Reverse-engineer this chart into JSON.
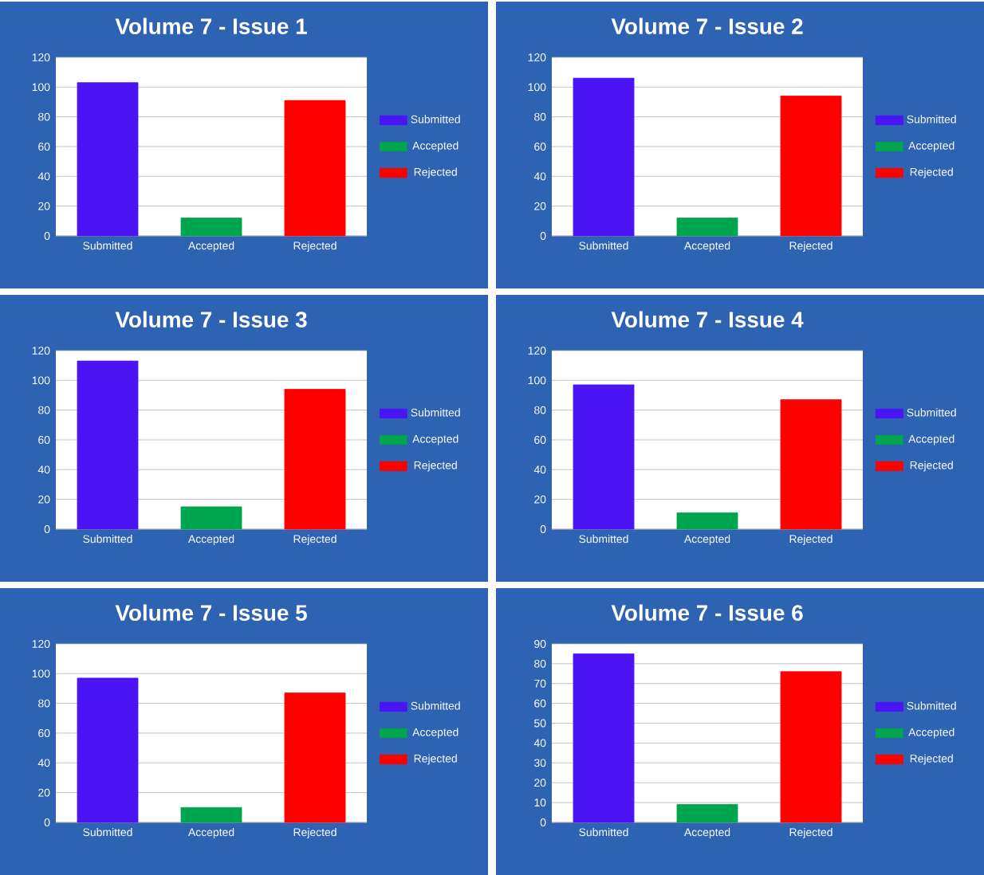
{
  "chart_data": [
    {
      "type": "bar",
      "title": "Volume 7 - Issue 1",
      "categories": [
        "Submitted",
        "Accepted",
        "Rejected"
      ],
      "series": [
        {
          "name": "Submitted",
          "color": "#4a14f5",
          "values": [
            103,
            null,
            null
          ]
        },
        {
          "name": "Accepted",
          "color": "#00a550",
          "values": [
            null,
            12,
            null
          ]
        },
        {
          "name": "Rejected",
          "color": "#ff0000",
          "values": [
            null,
            null,
            91
          ]
        }
      ],
      "ylim": [
        0,
        120
      ],
      "yticks": [
        0,
        20,
        40,
        60,
        80,
        100,
        120
      ],
      "grid": "y",
      "legend": "right"
    },
    {
      "type": "bar",
      "title": "Volume 7 - Issue 2",
      "categories": [
        "Submitted",
        "Accepted",
        "Rejected"
      ],
      "series": [
        {
          "name": "Submitted",
          "color": "#4a14f5",
          "values": [
            106,
            null,
            null
          ]
        },
        {
          "name": "Accepted",
          "color": "#00a550",
          "values": [
            null,
            12,
            null
          ]
        },
        {
          "name": "Rejected",
          "color": "#ff0000",
          "values": [
            null,
            null,
            94
          ]
        }
      ],
      "ylim": [
        0,
        120
      ],
      "yticks": [
        0,
        20,
        40,
        60,
        80,
        100,
        120
      ],
      "grid": "y",
      "legend": "right"
    },
    {
      "type": "bar",
      "title": "Volume 7 - Issue 3",
      "categories": [
        "Submitted",
        "Accepted",
        "Rejected"
      ],
      "series": [
        {
          "name": "Submitted",
          "color": "#4a14f5",
          "values": [
            113,
            null,
            null
          ]
        },
        {
          "name": "Accepted",
          "color": "#00a550",
          "values": [
            null,
            15,
            null
          ]
        },
        {
          "name": "Rejected",
          "color": "#ff0000",
          "values": [
            null,
            null,
            94
          ]
        }
      ],
      "ylim": [
        0,
        120
      ],
      "yticks": [
        0,
        20,
        40,
        60,
        80,
        100,
        120
      ],
      "grid": "y",
      "legend": "right"
    },
    {
      "type": "bar",
      "title": "Volume 7 - Issue 4",
      "categories": [
        "Submitted",
        "Accepted",
        "Rejected"
      ],
      "series": [
        {
          "name": "Submitted",
          "color": "#4a14f5",
          "values": [
            97,
            null,
            null
          ]
        },
        {
          "name": "Accepted",
          "color": "#00a550",
          "values": [
            null,
            11,
            null
          ]
        },
        {
          "name": "Rejected",
          "color": "#ff0000",
          "values": [
            null,
            null,
            87
          ]
        }
      ],
      "ylim": [
        0,
        120
      ],
      "yticks": [
        0,
        20,
        40,
        60,
        80,
        100,
        120
      ],
      "grid": "y",
      "legend": "right"
    },
    {
      "type": "bar",
      "title": "Volume 7 - Issue 5",
      "categories": [
        "Submitted",
        "Accepted",
        "Rejected"
      ],
      "series": [
        {
          "name": "Submitted",
          "color": "#4a14f5",
          "values": [
            97,
            null,
            null
          ]
        },
        {
          "name": "Accepted",
          "color": "#00a550",
          "values": [
            null,
            10,
            null
          ]
        },
        {
          "name": "Rejected",
          "color": "#ff0000",
          "values": [
            null,
            null,
            87
          ]
        }
      ],
      "ylim": [
        0,
        120
      ],
      "yticks": [
        0,
        20,
        40,
        60,
        80,
        100,
        120
      ],
      "grid": "y",
      "legend": "right"
    },
    {
      "type": "bar",
      "title": "Volume 7 - Issue 6",
      "categories": [
        "Submitted",
        "Accepted",
        "Rejected"
      ],
      "series": [
        {
          "name": "Submitted",
          "color": "#4a14f5",
          "values": [
            85,
            null,
            null
          ]
        },
        {
          "name": "Accepted",
          "color": "#00a550",
          "values": [
            null,
            9,
            null
          ]
        },
        {
          "name": "Rejected",
          "color": "#ff0000",
          "values": [
            null,
            null,
            76
          ]
        }
      ],
      "ylim": [
        0,
        90
      ],
      "yticks": [
        0,
        10,
        20,
        30,
        40,
        50,
        60,
        70,
        80,
        90
      ],
      "grid": "y",
      "legend": "right"
    }
  ]
}
